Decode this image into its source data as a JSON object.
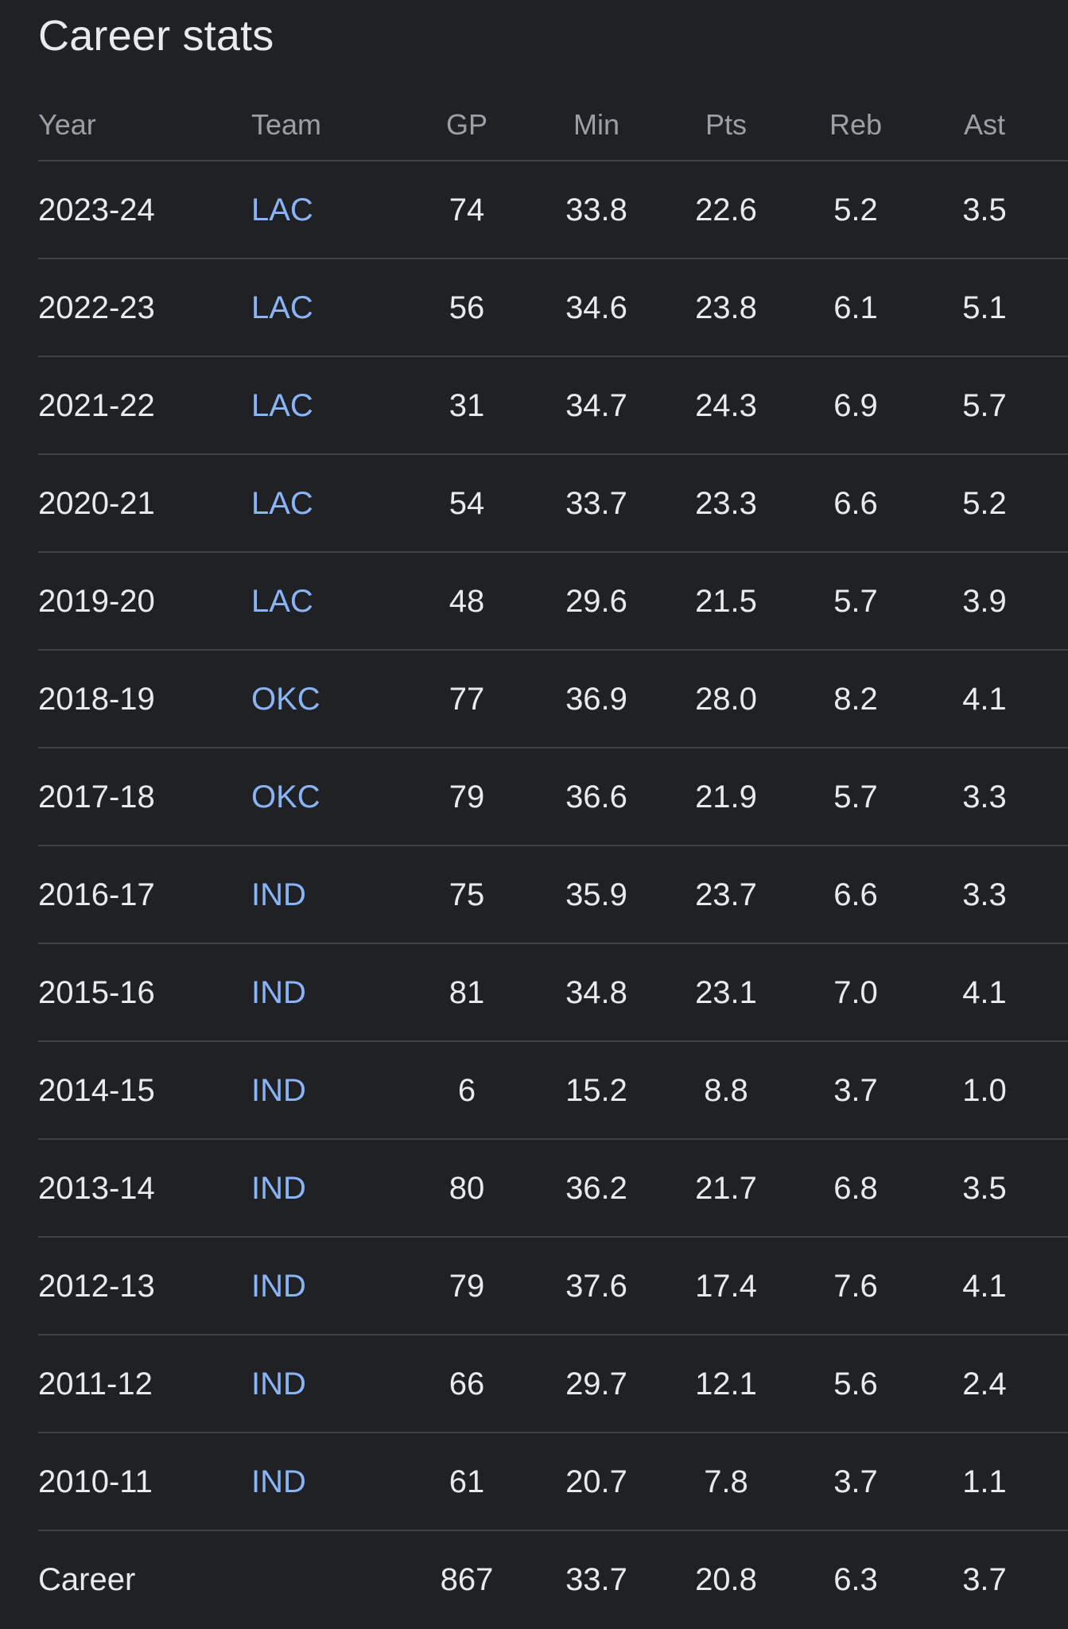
{
  "title": "Career stats",
  "colors": {
    "background": "#202124",
    "text": "#e8eaed",
    "muted": "#9aa0a6",
    "link": "#8ab4f8",
    "divider": "#3c4043"
  },
  "headers": {
    "year": "Year",
    "team": "Team",
    "gp": "GP",
    "min": "Min",
    "pts": "Pts",
    "reb": "Reb",
    "ast": "Ast"
  },
  "rows": [
    {
      "year": "2023-24",
      "team": "LAC",
      "gp": "74",
      "min": "33.8",
      "pts": "22.6",
      "reb": "5.2",
      "ast": "3.5"
    },
    {
      "year": "2022-23",
      "team": "LAC",
      "gp": "56",
      "min": "34.6",
      "pts": "23.8",
      "reb": "6.1",
      "ast": "5.1"
    },
    {
      "year": "2021-22",
      "team": "LAC",
      "gp": "31",
      "min": "34.7",
      "pts": "24.3",
      "reb": "6.9",
      "ast": "5.7"
    },
    {
      "year": "2020-21",
      "team": "LAC",
      "gp": "54",
      "min": "33.7",
      "pts": "23.3",
      "reb": "6.6",
      "ast": "5.2"
    },
    {
      "year": "2019-20",
      "team": "LAC",
      "gp": "48",
      "min": "29.6",
      "pts": "21.5",
      "reb": "5.7",
      "ast": "3.9"
    },
    {
      "year": "2018-19",
      "team": "OKC",
      "gp": "77",
      "min": "36.9",
      "pts": "28.0",
      "reb": "8.2",
      "ast": "4.1"
    },
    {
      "year": "2017-18",
      "team": "OKC",
      "gp": "79",
      "min": "36.6",
      "pts": "21.9",
      "reb": "5.7",
      "ast": "3.3"
    },
    {
      "year": "2016-17",
      "team": "IND",
      "gp": "75",
      "min": "35.9",
      "pts": "23.7",
      "reb": "6.6",
      "ast": "3.3"
    },
    {
      "year": "2015-16",
      "team": "IND",
      "gp": "81",
      "min": "34.8",
      "pts": "23.1",
      "reb": "7.0",
      "ast": "4.1"
    },
    {
      "year": "2014-15",
      "team": "IND",
      "gp": "6",
      "min": "15.2",
      "pts": "8.8",
      "reb": "3.7",
      "ast": "1.0"
    },
    {
      "year": "2013-14",
      "team": "IND",
      "gp": "80",
      "min": "36.2",
      "pts": "21.7",
      "reb": "6.8",
      "ast": "3.5"
    },
    {
      "year": "2012-13",
      "team": "IND",
      "gp": "79",
      "min": "37.6",
      "pts": "17.4",
      "reb": "7.6",
      "ast": "4.1"
    },
    {
      "year": "2011-12",
      "team": "IND",
      "gp": "66",
      "min": "29.7",
      "pts": "12.1",
      "reb": "5.6",
      "ast": "2.4"
    },
    {
      "year": "2010-11",
      "team": "IND",
      "gp": "61",
      "min": "20.7",
      "pts": "7.8",
      "reb": "3.7",
      "ast": "1.1"
    }
  ],
  "career": {
    "label": "Career",
    "gp": "867",
    "min": "33.7",
    "pts": "20.8",
    "reb": "6.3",
    "ast": "3.7"
  }
}
